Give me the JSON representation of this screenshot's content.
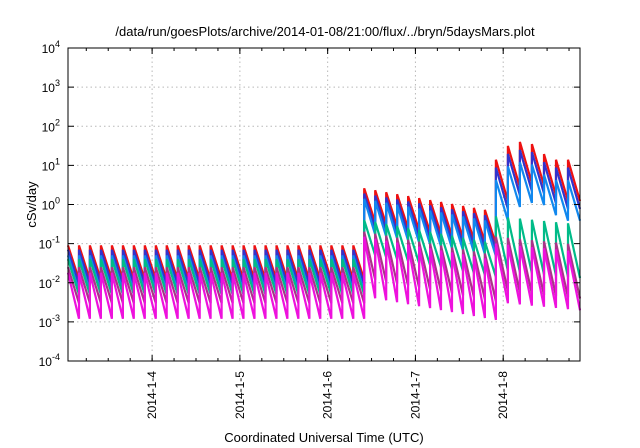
{
  "chart_data": {
    "type": "line",
    "title": "/data/run/goesPlots/archive/2014-01-08/21:00/flux/../bryn/5daysMars.plot",
    "xlabel": "Coordinated Universal Time (UTC)",
    "ylabel": "cSv/day",
    "yscale": "log",
    "ylim": [
      0.0001,
      10000
    ],
    "xlim": [
      "2014-01-03T01:00",
      "2014-01-08T21:00"
    ],
    "grid": true,
    "y_ticks": [
      {
        "value": 0.0001,
        "base": "10",
        "exp": "-4"
      },
      {
        "value": 0.001,
        "base": "10",
        "exp": "-3"
      },
      {
        "value": 0.01,
        "base": "10",
        "exp": "-2"
      },
      {
        "value": 0.1,
        "base": "10",
        "exp": "-1"
      },
      {
        "value": 1,
        "base": "10",
        "exp": "0"
      },
      {
        "value": 10,
        "base": "10",
        "exp": "1"
      },
      {
        "value": 100,
        "base": "10",
        "exp": "2"
      },
      {
        "value": 1000,
        "base": "10",
        "exp": "3"
      },
      {
        "value": 10000,
        "base": "10",
        "exp": "4"
      }
    ],
    "x_ticks": [
      {
        "label": "2014-1-4",
        "value": "2014-01-04T00:00"
      },
      {
        "label": "2014-1-5",
        "value": "2014-01-05T00:00"
      },
      {
        "label": "2014-1-6",
        "value": "2014-01-06T00:00"
      },
      {
        "label": "2014-1-7",
        "value": "2014-01-07T00:00"
      },
      {
        "label": "2014-1-8",
        "value": "2014-01-08T00:00"
      }
    ],
    "sawtooth_period_hours": 3,
    "series": [
      {
        "color": "#ee1111",
        "segments": [
          {
            "start": "2014-01-03T01:00",
            "end": "2014-01-06T10:00",
            "peak": 0.09,
            "trough": 0.012,
            "decay": 0
          },
          {
            "start": "2014-01-06T10:00",
            "end": "2014-01-07T22:00",
            "peak": 2.6,
            "trough": 0.35,
            "decay": 0.12
          },
          {
            "start": "2014-01-07T22:00",
            "end": "2014-01-08T21:00",
            "peak": 40,
            "trough": 3.5,
            "decay": -1
          }
        ]
      },
      {
        "color": "#3333cc",
        "segments": [
          {
            "start": "2014-01-03T01:00",
            "end": "2014-01-06T10:00",
            "peak": 0.07,
            "trough": 0.009,
            "decay": 0
          },
          {
            "start": "2014-01-06T10:00",
            "end": "2014-01-07T22:00",
            "peak": 1.9,
            "trough": 0.25,
            "decay": 0.12
          },
          {
            "start": "2014-01-07T22:00",
            "end": "2014-01-08T21:00",
            "peak": 25,
            "trough": 2.2,
            "decay": -1
          }
        ]
      },
      {
        "color": "#1188ee",
        "segments": [
          {
            "start": "2014-01-03T01:00",
            "end": "2014-01-06T10:00",
            "peak": 0.05,
            "trough": 0.006,
            "decay": 0
          },
          {
            "start": "2014-01-06T10:00",
            "end": "2014-01-07T22:00",
            "peak": 1.4,
            "trough": 0.17,
            "decay": 0.12
          },
          {
            "start": "2014-01-07T22:00",
            "end": "2014-01-08T21:00",
            "peak": 12,
            "trough": 1.1,
            "decay": -1
          }
        ]
      },
      {
        "color": "#00bb88",
        "segments": [
          {
            "start": "2014-01-03T01:00",
            "end": "2014-01-06T10:00",
            "peak": 0.04,
            "trough": 0.005,
            "decay": 0
          },
          {
            "start": "2014-01-06T10:00",
            "end": "2014-01-07T22:00",
            "peak": 0.4,
            "trough": 0.05,
            "decay": 0.12
          },
          {
            "start": "2014-01-07T22:00",
            "end": "2014-01-08T21:00",
            "peak": 0.5,
            "trough": 0.02,
            "decay": 0.5
          }
        ]
      },
      {
        "color": "#aa3388",
        "segments": [
          {
            "start": "2014-01-03T01:00",
            "end": "2014-01-06T10:00",
            "peak": 0.025,
            "trough": 0.003,
            "decay": 0
          },
          {
            "start": "2014-01-06T10:00",
            "end": "2014-01-07T22:00",
            "peak": 0.2,
            "trough": 0.012,
            "decay": 0.12
          },
          {
            "start": "2014-01-07T22:00",
            "end": "2014-01-08T21:00",
            "peak": 0.15,
            "trough": 0.006,
            "decay": 0.5
          }
        ]
      },
      {
        "color": "#ee11dd",
        "segments": [
          {
            "start": "2014-01-03T01:00",
            "end": "2014-01-06T10:00",
            "peak": 0.018,
            "trough": 0.0012,
            "decay": 0
          },
          {
            "start": "2014-01-06T10:00",
            "end": "2014-01-07T22:00",
            "peak": 0.15,
            "trough": 0.004,
            "decay": 0.12
          },
          {
            "start": "2014-01-07T22:00",
            "end": "2014-01-08T21:00",
            "peak": 0.1,
            "trough": 0.003,
            "decay": 0.5
          }
        ]
      }
    ]
  }
}
